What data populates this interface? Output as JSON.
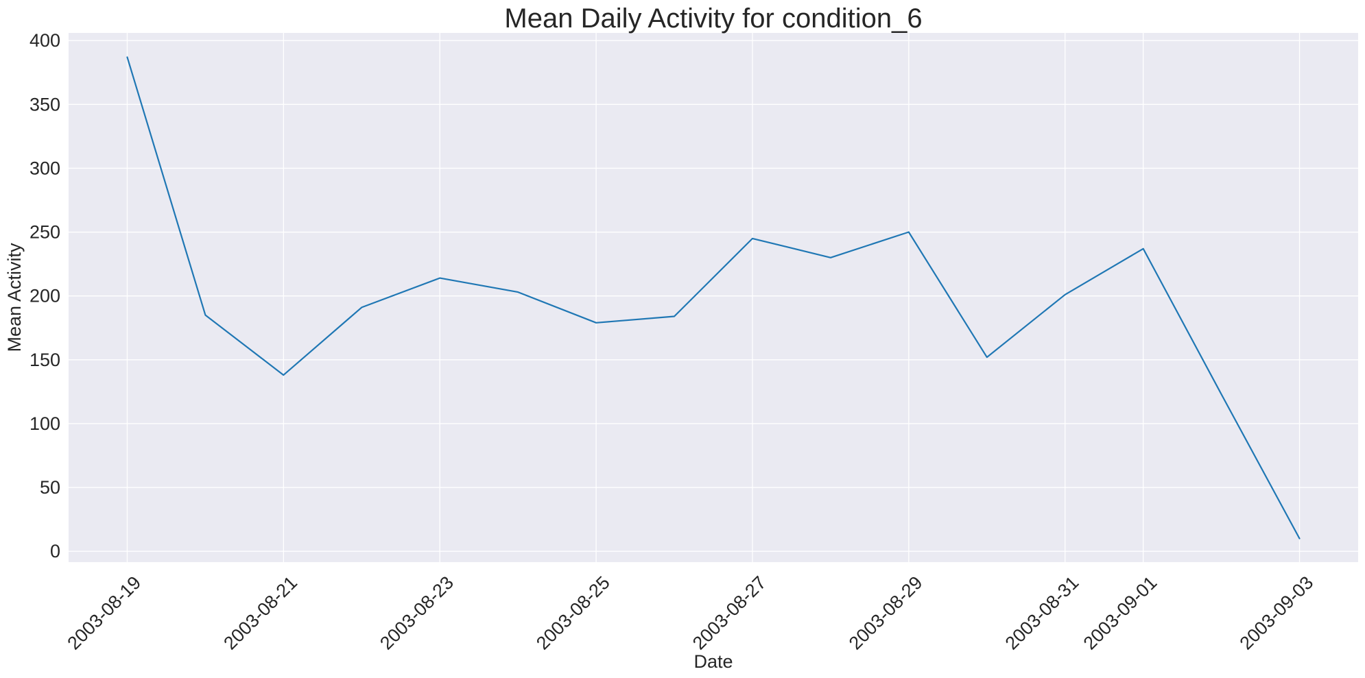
{
  "chart_data": {
    "type": "line",
    "title": "Mean Daily Activity for condition_6",
    "xlabel": "Date",
    "ylabel": "Mean Activity",
    "x": [
      "2003-08-19",
      "2003-08-20",
      "2003-08-21",
      "2003-08-22",
      "2003-08-23",
      "2003-08-24",
      "2003-08-25",
      "2003-08-26",
      "2003-08-27",
      "2003-08-28",
      "2003-08-29",
      "2003-08-30",
      "2003-08-31",
      "2003-09-01",
      "2003-09-02",
      "2003-09-03"
    ],
    "series": [
      {
        "values": [
          387,
          185,
          138,
          191,
          214,
          203,
          179,
          184,
          245,
          230,
          250,
          152,
          201,
          237,
          123,
          10
        ]
      }
    ],
    "xticks": [
      "2003-08-19",
      "2003-08-21",
      "2003-08-23",
      "2003-08-25",
      "2003-08-27",
      "2003-08-29",
      "2003-08-31",
      "2003-09-01",
      "2003-09-03"
    ],
    "yticks": [
      0,
      50,
      100,
      150,
      200,
      250,
      300,
      350,
      400
    ],
    "xlim": [
      "2003-08-18T06:00",
      "2003-09-03T18:00"
    ],
    "ylim": [
      -8.5,
      406
    ],
    "grid": true,
    "colors": {
      "background": "#eaeaf2",
      "grid": "#ffffff",
      "line": "#1f77b4"
    }
  }
}
